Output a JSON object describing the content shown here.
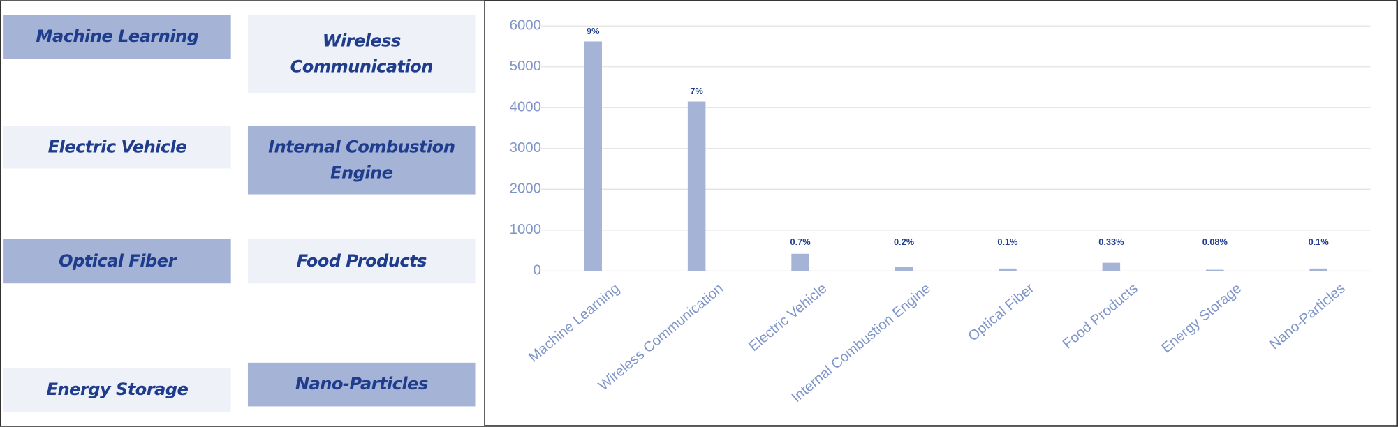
{
  "tiles": [
    {
      "label": "Machine Learning",
      "style": "dark"
    },
    {
      "label": "Wireless  Communication",
      "style": "light"
    },
    {
      "label": "Electric Vehicle",
      "style": "light"
    },
    {
      "label": "Internal Combustion Engine",
      "style": "dark"
    },
    {
      "label": "Optical Fiber",
      "style": "dark"
    },
    {
      "label": "Food Products",
      "style": "light"
    },
    {
      "label": "Energy Storage",
      "style": "light"
    },
    {
      "label": "Nano-Particles",
      "style": "dark"
    }
  ],
  "chart_data": {
    "type": "bar",
    "categories": [
      "Machine Learning",
      "Wireless Communication",
      "Electric Vehicle",
      "Internal Combustion Engine",
      "Optical Fiber",
      "Food Products",
      "Energy Storage",
      "Nano-Particles"
    ],
    "values": [
      5620,
      4150,
      420,
      100,
      60,
      200,
      30,
      60
    ],
    "annotations": [
      "9%",
      "7%",
      "0.7%",
      "0.2%",
      "0.1%",
      "0.33%",
      "0.08%",
      "0.1%"
    ],
    "color": "#a5b4d6",
    "ylim": [
      0,
      6000
    ],
    "yticks": [
      0,
      1000,
      2000,
      3000,
      4000,
      5000,
      6000
    ],
    "grid": true
  }
}
